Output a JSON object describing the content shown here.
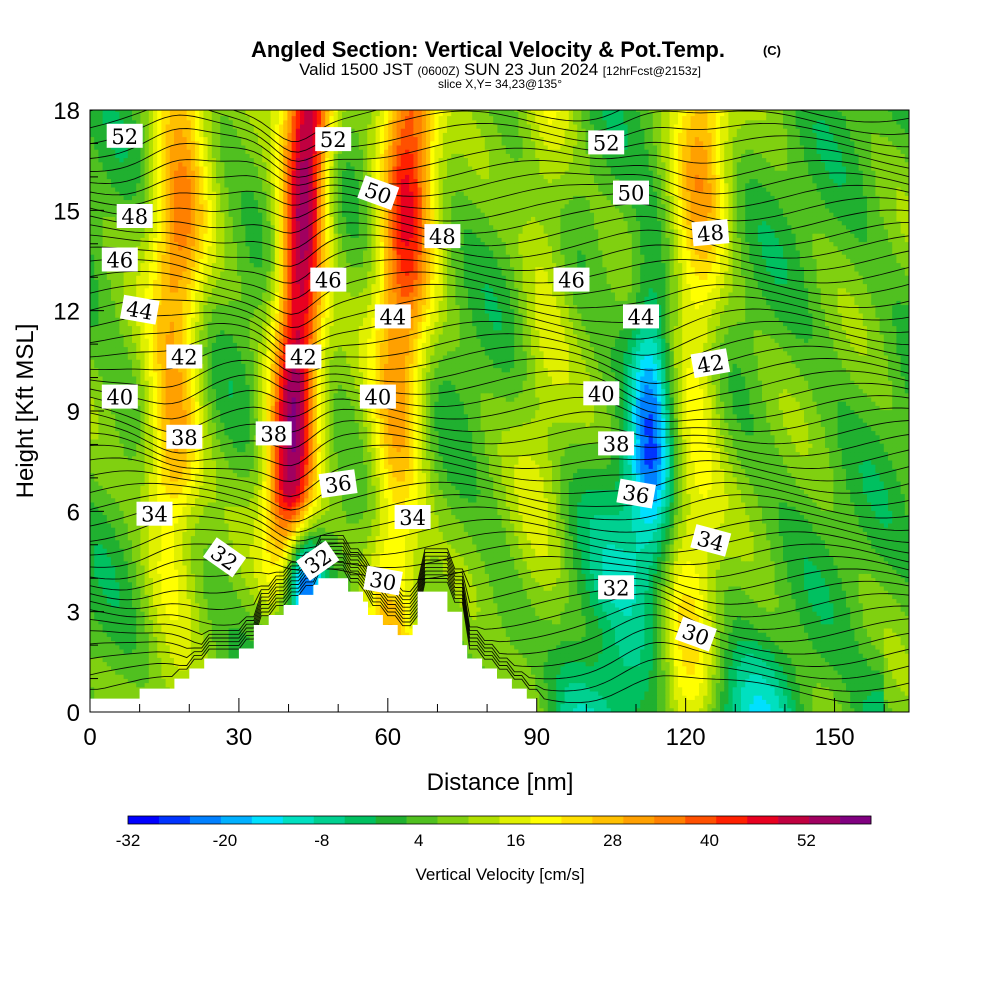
{
  "header": {
    "title": "Angled Section: Vertical Velocity & Pot.Temp.",
    "title_mark": "(C)",
    "valid_prefix": "Valid 1500 JST",
    "valid_utc": "(0600Z)",
    "valid_date": "SUN 23 Jun 2024",
    "forecast": "[12hrFcst@2153z]",
    "slice": "slice X,Y= 34,23@135°"
  },
  "chart_data": {
    "type": "heatmap",
    "xlabel": "Distance [nm]",
    "ylabel": "Height [Kft MSL]",
    "xlim": [
      0,
      165
    ],
    "ylim": [
      0,
      18
    ],
    "x_ticks": [
      0,
      30,
      60,
      90,
      120,
      150
    ],
    "y_ticks": [
      0,
      3,
      6,
      9,
      12,
      15,
      18
    ],
    "colorbar": {
      "label": "Vertical Velocity [cm/s]",
      "min": -32,
      "max": 60,
      "step": 4,
      "tick_values": [
        -32,
        -20,
        -8,
        4,
        16,
        28,
        40,
        52
      ],
      "tick_labels": [
        "-32",
        "-20",
        "-8",
        "4",
        "16",
        "28",
        "40",
        "52"
      ],
      "colors": [
        "#0000ff",
        "#0033ff",
        "#0080ff",
        "#00b0ff",
        "#00e0ff",
        "#00e0c0",
        "#00d090",
        "#00c060",
        "#20b030",
        "#50c020",
        "#80d010",
        "#b0e000",
        "#e0f000",
        "#ffff00",
        "#ffe000",
        "#ffc000",
        "#ffa000",
        "#ff8000",
        "#ff5000",
        "#ff2000",
        "#e80020",
        "#c00040",
        "#a00060",
        "#800080"
      ]
    },
    "terrain_kft": [
      [
        0,
        0.4
      ],
      [
        10,
        0.4
      ],
      [
        10,
        0.7
      ],
      [
        17,
        0.7
      ],
      [
        17,
        1.0
      ],
      [
        20,
        1.0
      ],
      [
        20,
        1.3
      ],
      [
        23,
        1.3
      ],
      [
        23,
        1.6
      ],
      [
        30,
        1.6
      ],
      [
        30,
        1.9
      ],
      [
        33,
        1.9
      ],
      [
        33,
        2.6
      ],
      [
        36,
        2.6
      ],
      [
        36,
        2.9
      ],
      [
        39,
        2.9
      ],
      [
        39,
        3.2
      ],
      [
        42,
        3.2
      ],
      [
        42,
        3.5
      ],
      [
        45,
        3.5
      ],
      [
        45,
        3.8
      ],
      [
        46,
        3.8
      ],
      [
        46,
        4.0
      ],
      [
        52,
        4.0
      ],
      [
        52,
        3.6
      ],
      [
        55,
        3.6
      ],
      [
        55,
        3.3
      ],
      [
        56,
        3.3
      ],
      [
        56,
        2.9
      ],
      [
        59,
        2.9
      ],
      [
        59,
        2.6
      ],
      [
        62,
        2.6
      ],
      [
        62,
        2.3
      ],
      [
        65,
        2.3
      ],
      [
        65,
        2.6
      ],
      [
        66,
        2.6
      ],
      [
        66,
        3.6
      ],
      [
        72,
        3.6
      ],
      [
        72,
        3.0
      ],
      [
        75,
        3.0
      ],
      [
        75,
        2.0
      ],
      [
        76,
        2.0
      ],
      [
        76,
        1.6
      ],
      [
        79,
        1.6
      ],
      [
        79,
        1.3
      ],
      [
        82,
        1.3
      ],
      [
        82,
        1.0
      ],
      [
        85,
        1.0
      ],
      [
        85,
        0.7
      ],
      [
        88,
        0.7
      ],
      [
        88,
        0.4
      ],
      [
        90,
        0.4
      ],
      [
        90,
        0
      ]
    ],
    "updraft_bands": [
      {
        "center_nm": 17,
        "peak_cm_s": 36
      },
      {
        "center_nm": 41,
        "peak_cm_s": 58
      },
      {
        "center_nm": 63,
        "peak_cm_s": 46
      },
      {
        "center_nm": 91,
        "peak_cm_s": 18
      },
      {
        "center_nm": 122,
        "peak_cm_s": 30
      }
    ],
    "downdraft_areas": [
      {
        "center_nm": 113,
        "center_kft": 9.0,
        "peak_cm_s": -20
      },
      {
        "center_nm": 43,
        "center_kft": 4.0,
        "peak_cm_s": -26
      }
    ],
    "theta_contour_labels": [
      {
        "value": "52",
        "x": 7,
        "y": 17.2,
        "angle": 0
      },
      {
        "value": "52",
        "x": 49,
        "y": 17.1,
        "angle": 0
      },
      {
        "value": "52",
        "x": 104,
        "y": 17.0,
        "angle": 0
      },
      {
        "value": "50",
        "x": 58,
        "y": 15.5,
        "angle": 20
      },
      {
        "value": "50",
        "x": 109,
        "y": 15.5,
        "angle": 0
      },
      {
        "value": "48",
        "x": 9,
        "y": 14.8,
        "angle": 0
      },
      {
        "value": "48",
        "x": 71,
        "y": 14.2,
        "angle": 0
      },
      {
        "value": "48",
        "x": 125,
        "y": 14.3,
        "angle": -5
      },
      {
        "value": "46",
        "x": 6,
        "y": 13.5,
        "angle": 0
      },
      {
        "value": "46",
        "x": 48,
        "y": 12.9,
        "angle": 0
      },
      {
        "value": "46",
        "x": 97,
        "y": 12.9,
        "angle": 0
      },
      {
        "value": "44",
        "x": 10,
        "y": 12.0,
        "angle": 10
      },
      {
        "value": "44",
        "x": 61,
        "y": 11.8,
        "angle": 0
      },
      {
        "value": "44",
        "x": 111,
        "y": 11.8,
        "angle": 0
      },
      {
        "value": "42",
        "x": 19,
        "y": 10.6,
        "angle": 0
      },
      {
        "value": "42",
        "x": 43,
        "y": 10.6,
        "angle": 0
      },
      {
        "value": "42",
        "x": 125,
        "y": 10.4,
        "angle": -10
      },
      {
        "value": "40",
        "x": 6,
        "y": 9.4,
        "angle": 0
      },
      {
        "value": "40",
        "x": 58,
        "y": 9.4,
        "angle": 0
      },
      {
        "value": "40",
        "x": 103,
        "y": 9.5,
        "angle": 0
      },
      {
        "value": "38",
        "x": 19,
        "y": 8.2,
        "angle": 0
      },
      {
        "value": "38",
        "x": 37,
        "y": 8.3,
        "angle": 0
      },
      {
        "value": "38",
        "x": 106,
        "y": 8.0,
        "angle": 0
      },
      {
        "value": "36",
        "x": 50,
        "y": 6.8,
        "angle": -8
      },
      {
        "value": "36",
        "x": 110,
        "y": 6.5,
        "angle": 10
      },
      {
        "value": "34",
        "x": 13,
        "y": 5.9,
        "angle": 0
      },
      {
        "value": "34",
        "x": 65,
        "y": 5.8,
        "angle": 0
      },
      {
        "value": "34",
        "x": 125,
        "y": 5.1,
        "angle": 15
      },
      {
        "value": "32",
        "x": 27,
        "y": 4.6,
        "angle": 35
      },
      {
        "value": "32",
        "x": 46,
        "y": 4.5,
        "angle": -35
      },
      {
        "value": "32",
        "x": 106,
        "y": 3.7,
        "angle": 0
      },
      {
        "value": "30",
        "x": 59,
        "y": 3.9,
        "angle": 10
      },
      {
        "value": "30",
        "x": 122,
        "y": 2.3,
        "angle": 20
      }
    ]
  }
}
